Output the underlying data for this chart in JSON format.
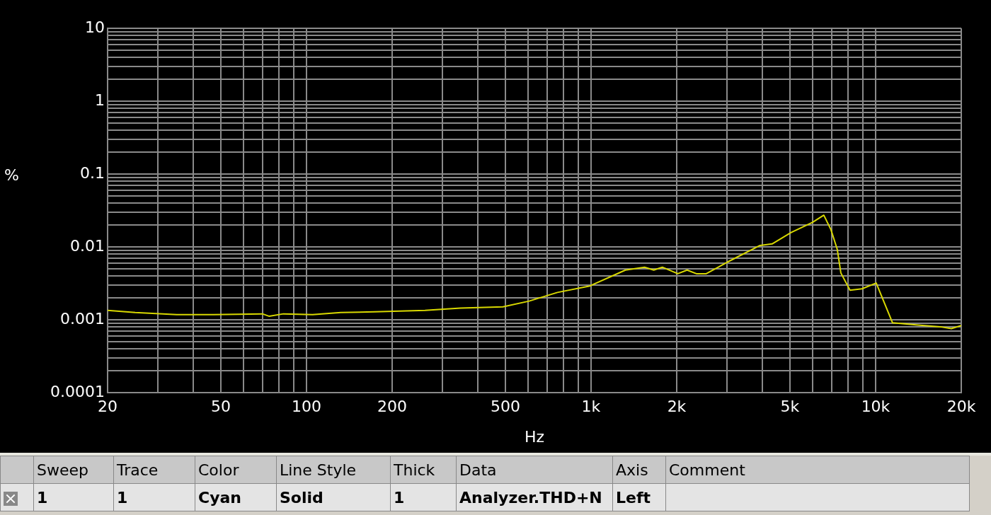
{
  "chart_data": {
    "type": "line",
    "xlabel": "Hz",
    "ylabel": "%",
    "log": "xy",
    "grid": true,
    "legend": false,
    "marker": "none",
    "line_style": "solid",
    "xlim": [
      20,
      20000
    ],
    "ylim": [
      0.0001,
      10
    ],
    "xticks": [
      20,
      {
        "value": 30,
        "label": null
      },
      {
        "value": 40,
        "label": null
      },
      50,
      {
        "value": 60,
        "label": null
      },
      {
        "value": 70,
        "label": null
      },
      {
        "value": 80,
        "label": null
      },
      {
        "value": 90,
        "label": null
      },
      100,
      200,
      {
        "value": 300,
        "label": null
      },
      {
        "value": 400,
        "label": null
      },
      500,
      {
        "value": 600,
        "label": null
      },
      {
        "value": 700,
        "label": null
      },
      {
        "value": 800,
        "label": null
      },
      {
        "value": 900,
        "label": null
      },
      {
        "value": 1000,
        "label": "1k"
      },
      {
        "value": 2000,
        "label": "2k"
      },
      {
        "value": 3000,
        "label": null
      },
      {
        "value": 4000,
        "label": null
      },
      {
        "value": 5000,
        "label": "5k"
      },
      {
        "value": 6000,
        "label": null
      },
      {
        "value": 7000,
        "label": null
      },
      {
        "value": 8000,
        "label": null
      },
      {
        "value": 9000,
        "label": null
      },
      {
        "value": 10000,
        "label": "10k"
      },
      {
        "value": 20000,
        "label": "20k"
      }
    ],
    "yticks": [
      0.0001,
      {
        "value": 0.0002,
        "label": null
      },
      {
        "value": 0.0003,
        "label": null
      },
      {
        "value": 0.0004,
        "label": null
      },
      {
        "value": 0.0005,
        "label": null
      },
      {
        "value": 0.0006,
        "label": null
      },
      {
        "value": 0.0007,
        "label": null
      },
      {
        "value": 0.0008,
        "label": null
      },
      {
        "value": 0.0009,
        "label": null
      },
      0.001,
      {
        "value": 0.002,
        "label": null
      },
      {
        "value": 0.003,
        "label": null
      },
      {
        "value": 0.004,
        "label": null
      },
      {
        "value": 0.005,
        "label": null
      },
      {
        "value": 0.006,
        "label": null
      },
      {
        "value": 0.007,
        "label": null
      },
      {
        "value": 0.008,
        "label": null
      },
      {
        "value": 0.009,
        "label": null
      },
      0.01,
      {
        "value": 0.02,
        "label": null
      },
      {
        "value": 0.03,
        "label": null
      },
      {
        "value": 0.04,
        "label": null
      },
      {
        "value": 0.05,
        "label": null
      },
      {
        "value": 0.06,
        "label": null
      },
      {
        "value": 0.07,
        "label": null
      },
      {
        "value": 0.08,
        "label": null
      },
      {
        "value": 0.09,
        "label": null
      },
      0.1,
      {
        "value": 0.2,
        "label": null
      },
      {
        "value": 0.3,
        "label": null
      },
      {
        "value": 0.4,
        "label": null
      },
      {
        "value": 0.5,
        "label": null
      },
      {
        "value": 0.6,
        "label": null
      },
      {
        "value": 0.7,
        "label": null
      },
      {
        "value": 0.8,
        "label": null
      },
      {
        "value": 0.9,
        "label": null
      },
      1,
      {
        "value": 2,
        "label": null
      },
      {
        "value": 3,
        "label": null
      },
      {
        "value": 4,
        "label": null
      },
      {
        "value": 5,
        "label": null
      },
      {
        "value": 6,
        "label": null
      },
      {
        "value": 7,
        "label": null
      },
      {
        "value": 8,
        "label": null
      },
      {
        "value": 9,
        "label": null
      },
      10
    ],
    "x": [
      20,
      25,
      35,
      47,
      70,
      74,
      83,
      105,
      132,
      174,
      261,
      348,
      490,
      606,
      762,
      991,
      1321,
      1542,
      1661,
      1780,
      2018,
      2175,
      2345,
      2540,
      3014,
      3926,
      4326,
      5049,
      5997,
      6576,
      6966,
      7330,
      7550,
      8130,
      8955,
      10050,
      11470,
      13850,
      17130,
      18460,
      20000
    ],
    "series": [
      {
        "color": "#d8d800",
        "values": [
          0.00135,
          0.00126,
          0.00118,
          0.00118,
          0.00121,
          0.00112,
          0.00121,
          0.00118,
          0.00126,
          0.00129,
          0.00135,
          0.00145,
          0.00151,
          0.00181,
          0.00238,
          0.00292,
          0.00482,
          0.00528,
          0.00482,
          0.00528,
          0.0043,
          0.00482,
          0.0043,
          0.0043,
          0.0062,
          0.0105,
          0.011,
          0.0158,
          0.0217,
          0.0273,
          0.0173,
          0.00933,
          0.0044,
          0.00255,
          0.00267,
          0.0032,
          0.000912,
          0.000853,
          0.000796,
          0.00076,
          0.000834
        ]
      }
    ],
    "annotations": [
      "Sweep",
      "Trace",
      "Color",
      "Line Style",
      "Thick",
      "Data",
      "Axis",
      "Comment",
      "1",
      "1",
      "Cyan",
      "Solid",
      "1",
      "Analyzer.THD+N",
      "Left"
    ]
  }
}
